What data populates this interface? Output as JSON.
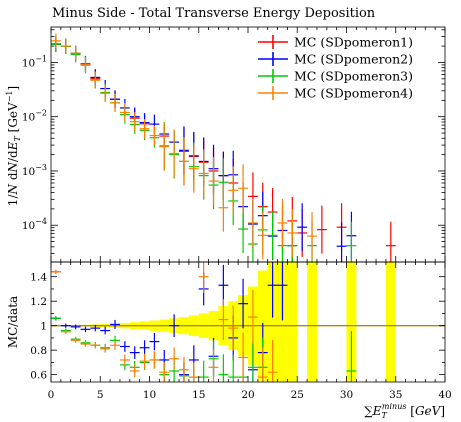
{
  "title": "Minus Side - Total Transverse Energy Deposition",
  "chart_data": {
    "type": "scatter",
    "title": "Minus Side - Total Transverse Energy Deposition",
    "xlabel": "∑E_T^minus [GeV]",
    "xlim": [
      0,
      40
    ],
    "xticks": [
      0,
      5,
      10,
      15,
      20,
      25,
      30,
      35,
      40
    ],
    "main": {
      "ylabel": "1/N dN/dE_T [GeV^-1]",
      "yscale": "log",
      "ylim": [
        2.1e-05,
        0.45
      ],
      "ytick_labels": [
        "10^-4",
        "10^-3",
        "10^-2",
        "10^-1"
      ],
      "series": [
        {
          "name": "MC (SDpomeron1)",
          "color": "#ff0000",
          "x": [
            0.5,
            1.5,
            2.5,
            4.5,
            6.5,
            8.5,
            9.5,
            11.5,
            13.5,
            14.5,
            15.5,
            16.5,
            17.5,
            18.5,
            20.5,
            21.5,
            22.5,
            24.5,
            25.5,
            27.5,
            29.5,
            34.5
          ],
          "y": [
            0.22,
            0.2,
            0.145,
            0.051,
            0.021,
            0.0094,
            0.0074,
            0.0044,
            0.0023,
            0.00185,
            0.00145,
            0.001,
            0.00082,
            0.0006,
            0.00034,
            0.00022,
            0.000175,
            0.00012,
            7.2e-05,
            8.3e-05,
            9.2e-05,
            4.2e-05
          ]
        },
        {
          "name": "MC (SDpomeron2)",
          "color": "#0000ff",
          "x": [
            0.5,
            1.5,
            2.5,
            3.5,
            4.5,
            5.5,
            6.5,
            7.5,
            8.5,
            9.5,
            10.5,
            11.5,
            12.5,
            13.5,
            14.5,
            15.5,
            16.5,
            17.5,
            18.5,
            19.5,
            20.5,
            21.5,
            22.5,
            23.5,
            24.5,
            25.5,
            29.5,
            30.5
          ],
          "y": [
            0.215,
            0.2,
            0.148,
            0.094,
            0.053,
            0.033,
            0.021,
            0.0145,
            0.01,
            0.0078,
            0.0073,
            0.0048,
            0.0034,
            0.0024,
            0.0019,
            0.0015,
            0.0011,
            0.00082,
            0.00085,
            0.00022,
            0.000105,
            0.00015,
            6.3e-05,
            8e-05,
            4.2e-05,
            9.2e-05,
            4.1e-05,
            6.4e-05
          ]
        },
        {
          "name": "MC (SDpomeron3)",
          "color": "#00cc00",
          "x": [
            0.5,
            1.5,
            2.5,
            3.5,
            4.5,
            5.5,
            6.5,
            7.5,
            8.5,
            9.5,
            10.5,
            11.5,
            12.5,
            13.5,
            14.5,
            15.5,
            16.5,
            17.5,
            18.5,
            19.5,
            20.5,
            21.5,
            22.5,
            23.5,
            24.5,
            26.5,
            30.5
          ],
          "y": [
            0.216,
            0.198,
            0.14,
            0.089,
            0.048,
            0.028,
            0.018,
            0.011,
            0.0072,
            0.0056,
            0.0041,
            0.0029,
            0.002,
            0.0015,
            0.0012,
            0.00082,
            0.00055,
            0.00062,
            0.00028,
            8.5e-05,
            4.5e-05,
            8.2e-05,
            6.5e-05,
            4.2e-05,
            4.2e-05,
            4.2e-05,
            4.2e-05
          ]
        },
        {
          "name": "MC (SDpomeron4)",
          "color": "#ff8000",
          "x": [
            0.5,
            1.5,
            2.5,
            3.5,
            4.5,
            5.5,
            6.5,
            7.5,
            8.5,
            9.5,
            10.5,
            11.5,
            12.5,
            13.5,
            14.5,
            15.5,
            16.5,
            17.5,
            18.5,
            19.5,
            20.5,
            21.5,
            23.5,
            24.5,
            26.5
          ],
          "y": [
            0.25,
            0.2,
            0.148,
            0.091,
            0.047,
            0.027,
            0.018,
            0.012,
            0.0081,
            0.006,
            0.0045,
            0.0028,
            0.0021,
            0.0015,
            0.0011,
            0.0009,
            0.00065,
            0.00021,
            0.00044,
            0.00048,
            0.00011,
            6.5e-05,
            0.00011,
            7.2e-05,
            6.3e-05
          ]
        }
      ]
    },
    "ratio": {
      "ylabel": "MC/data",
      "ylim": [
        0.54,
        1.52
      ],
      "yticks": [
        0.6,
        0.8,
        1,
        1.2,
        1.4
      ],
      "reference_color": "#b8860b",
      "band_color": "#ffff00",
      "band": {
        "x": [
          0.5,
          1.5,
          2.5,
          3.5,
          4.5,
          5.5,
          6.5,
          7.5,
          8.5,
          9.5,
          10.5,
          11.5,
          12.5,
          13.5,
          14.5,
          15.5,
          16.5,
          17.5,
          18.5,
          19.5,
          20.5,
          21.5,
          22.5,
          23.5,
          24.5,
          26.5,
          30.5,
          34.5
        ],
        "halfwidth": [
          0.003,
          0.004,
          0.005,
          0.007,
          0.01,
          0.013,
          0.017,
          0.022,
          0.028,
          0.034,
          0.042,
          0.05,
          0.06,
          0.07,
          0.085,
          0.1,
          0.12,
          0.16,
          0.2,
          0.25,
          0.32,
          0.45,
          0.6,
          0.7,
          0.7,
          0.7,
          0.7,
          0.7
        ]
      },
      "series": [
        {
          "name": "MC (SDpomeron1)",
          "color": "#ff0000",
          "x": [
            0.5
          ],
          "y": [
            1.44
          ]
        },
        {
          "name": "MC (SDpomeron2)",
          "color": "#0000ff",
          "x": [
            0.5,
            1.5,
            2.5,
            3.5,
            4.5,
            5.5,
            6.5,
            7.5,
            8.5,
            9.5,
            10.5,
            11.5,
            12.5,
            13.5,
            14.5,
            15.5,
            16.5,
            17.5,
            18.5,
            19.5,
            20.5,
            21.5,
            22.5,
            23.5
          ],
          "y": [
            1.06,
            1.0,
            0.99,
            0.97,
            0.98,
            0.96,
            1.01,
            0.83,
            0.78,
            0.82,
            0.87,
            0.72,
            1.0,
            0.6,
            0.72,
            1.3,
            0.75,
            1.33,
            0.9,
            1.18,
            0.64,
            0.78,
            1.33,
            1.33
          ]
        },
        {
          "name": "MC (SDpomeron3)",
          "color": "#00cc00",
          "x": [
            0.5,
            1.5,
            2.5,
            3.5,
            4.5,
            5.5,
            6.5,
            7.5,
            8.5,
            9.5,
            10.5,
            11.5,
            12.5,
            13.5,
            14.5,
            15.5,
            16.5,
            17.5,
            18.5,
            19.5,
            20.5,
            21.5,
            30.5
          ],
          "y": [
            1.06,
            0.96,
            0.89,
            0.86,
            0.84,
            0.82,
            0.88,
            0.68,
            0.66,
            0.7,
            0.72,
            0.6,
            0.63,
            0.59,
            0.58,
            0.58,
            0.73,
            0.6,
            0.58,
            0.58,
            0.66,
            0.66,
            0.63
          ]
        },
        {
          "name": "MC (SDpomeron4)",
          "color": "#ff8000",
          "x": [
            0.5,
            1.5,
            2.5,
            3.5,
            4.5,
            5.5,
            6.5,
            7.5,
            8.5,
            9.5,
            10.5,
            11.5,
            12.5,
            13.5,
            14.5,
            15.5,
            16.5,
            17.5,
            18.5,
            19.5,
            20.5,
            21.5,
            22.5
          ],
          "y": [
            1.44,
            0.95,
            0.88,
            0.85,
            0.84,
            0.81,
            0.84,
            0.72,
            0.63,
            0.71,
            0.72,
            0.62,
            0.73,
            0.64,
            0.58,
            1.4,
            0.66,
            1.05,
            0.98,
            0.74,
            1.07,
            0.58,
            0.62
          ]
        }
      ]
    }
  }
}
